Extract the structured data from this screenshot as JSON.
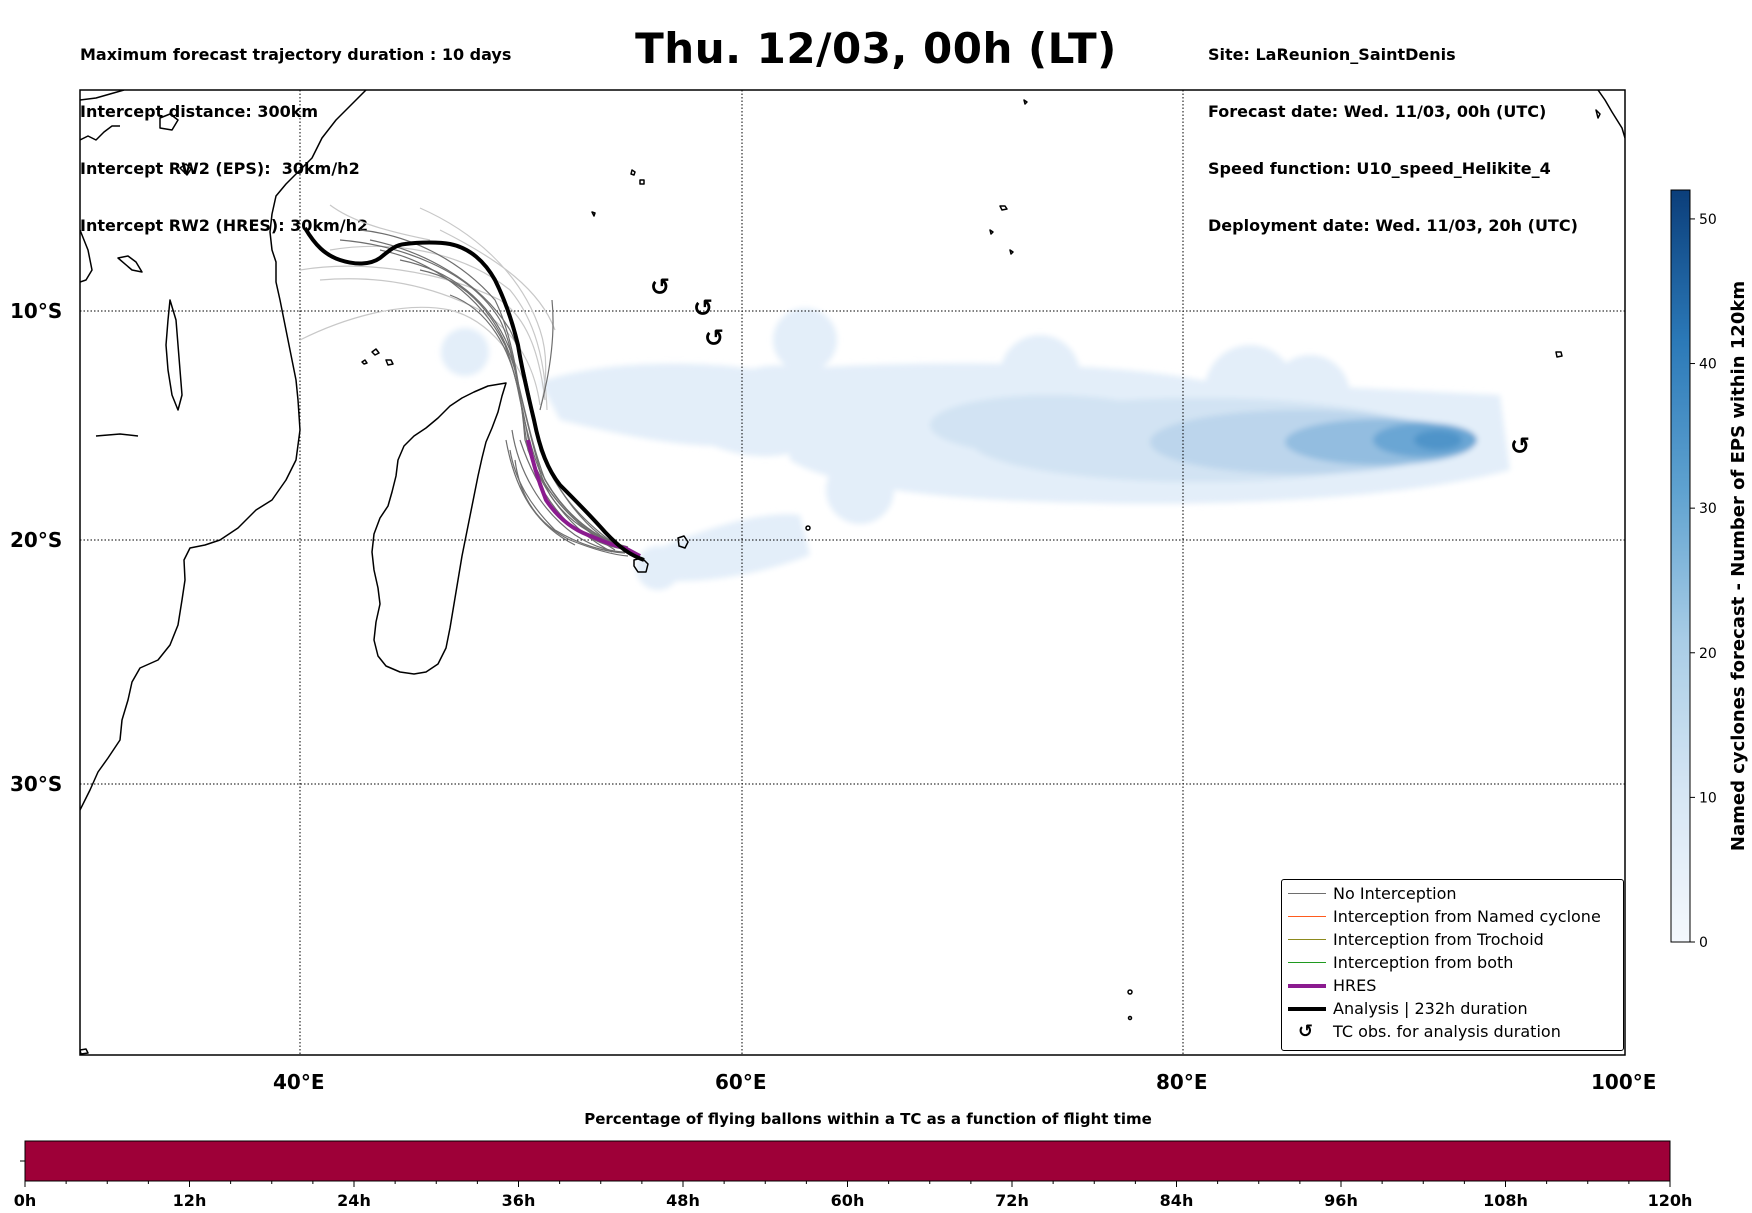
{
  "header_left": [
    "Maximum forecast trajectory duration : 10 days",
    "Intercept distance: 300km",
    "Intercept RW2 (EPS):  30km/h2",
    "Intercept RW2 (HRES): 30km/h2"
  ],
  "title": "Thu. 12/03, 00h (LT)",
  "header_right": [
    "Site: LaReunion_SaintDenis",
    "Forecast date: Wed. 11/03, 00h (UTC)",
    "Speed function: U10_speed_Helikite_4",
    "Deployment date: Wed. 11/03, 20h (UTC)"
  ],
  "map": {
    "lat_labels": [
      "10°S",
      "20°S",
      "30°S"
    ],
    "lon_labels": [
      "40°E",
      "60°E",
      "80°E",
      "100°E"
    ],
    "lat_lines": [
      -10,
      -20,
      -30
    ],
    "lon_lines": [
      40,
      60,
      80
    ],
    "extent": {
      "lon_min": 30,
      "lon_max": 100,
      "lat_top": -0.5
    }
  },
  "legend": {
    "items": [
      {
        "label": "No Interception",
        "color": "#6e6e6e",
        "kind": "thin"
      },
      {
        "label": "Interception from Named cyclone",
        "color": "#ff5b1e",
        "kind": "thin"
      },
      {
        "label": "Interception from Trochoid",
        "color": "#8c8a1e",
        "kind": "thin"
      },
      {
        "label": "Interception from both",
        "color": "#1f9a1f",
        "kind": "thin"
      },
      {
        "label": "HRES",
        "color": "#8b1b8f",
        "kind": "thick"
      },
      {
        "label": "Analysis | 232h duration",
        "color": "#000000",
        "kind": "thick"
      },
      {
        "label": "TC obs. for analysis duration",
        "color": "#000000",
        "kind": "symbol"
      }
    ]
  },
  "colorbar_right": {
    "label": "Named cyclones forecast - Number of EPS within 120km",
    "ticks": [
      0,
      10,
      20,
      30,
      40,
      50
    ],
    "min": 0,
    "max": 52,
    "color_low": "#f4f8fd",
    "color_high": "#0b3e7a"
  },
  "colorbar_bottom": {
    "title": "Percentage of flying ballons within a TC as a function of flight time",
    "ticks": [
      "0h",
      "12h",
      "24h",
      "36h",
      "48h",
      "60h",
      "72h",
      "84h",
      "96h",
      "108h",
      "120h"
    ],
    "fill_color": "#9e0038"
  },
  "tc_symbol": "↺"
}
